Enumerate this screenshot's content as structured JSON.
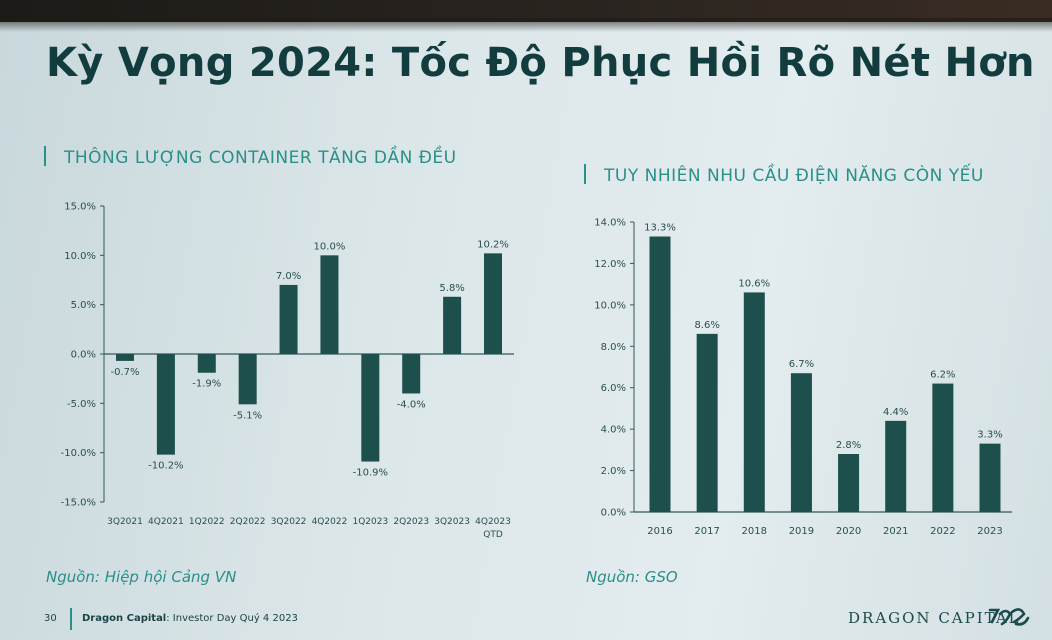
{
  "slide": {
    "title": "Kỳ Vọng 2024: Tốc Độ Phục Hồi Rõ Nét Hơn",
    "left_subtitle": "THÔNG LƯỢNG CONTAINER TĂNG DẦN ĐỀU",
    "right_subtitle": "TUY NHIÊN NHU CẦU ĐIỆN NĂNG CÒN YẾU",
    "left_source": "Nguồn: Hiệp hội Cảng VN",
    "right_source": "Nguồn: GSO",
    "footer_page": "30",
    "footer_company": "Dragon Capital",
    "footer_event": ": Investor Day Quý 4 2023",
    "brand": "DRAGON CAPITAL",
    "colors": {
      "bar": "#1d4f4c",
      "accent": "#2b8f89",
      "title": "#123c3d"
    }
  },
  "chart_data": [
    {
      "type": "bar",
      "categories": [
        "3Q2021",
        "4Q2021",
        "1Q2022",
        "2Q2022",
        "3Q2022",
        "4Q2022",
        "1Q2023",
        "2Q2023",
        "3Q2023",
        "4Q2023\nQTD"
      ],
      "values": [
        -0.7,
        -10.2,
        -1.9,
        -5.1,
        7.0,
        10.0,
        -10.9,
        -4.0,
        5.8,
        10.2
      ],
      "labels": [
        "-0.7%",
        "-10.2%",
        "-1.9%",
        "-5.1%",
        "7.0%",
        "10.0%",
        "-10.9%",
        "-4.0%",
        "5.8%",
        "10.2%"
      ],
      "yticks": [
        "15.0%",
        "10.0%",
        "5.0%",
        "0.0%",
        "-5.0%",
        "-10.0%",
        "-15.0%"
      ],
      "ylim": [
        -15,
        15
      ]
    },
    {
      "type": "bar",
      "categories": [
        "2016",
        "2017",
        "2018",
        "2019",
        "2020",
        "2021",
        "2022",
        "2023"
      ],
      "values": [
        13.3,
        8.6,
        10.6,
        6.7,
        2.8,
        4.4,
        6.2,
        3.3
      ],
      "labels": [
        "13.3%",
        "8.6%",
        "10.6%",
        "6.7%",
        "2.8%",
        "4.4%",
        "6.2%",
        "3.3%"
      ],
      "yticks": [
        "14.0%",
        "12.0%",
        "10.0%",
        "8.0%",
        "6.0%",
        "4.0%",
        "2.0%",
        "0.0%"
      ],
      "ylim": [
        0,
        14
      ]
    }
  ]
}
